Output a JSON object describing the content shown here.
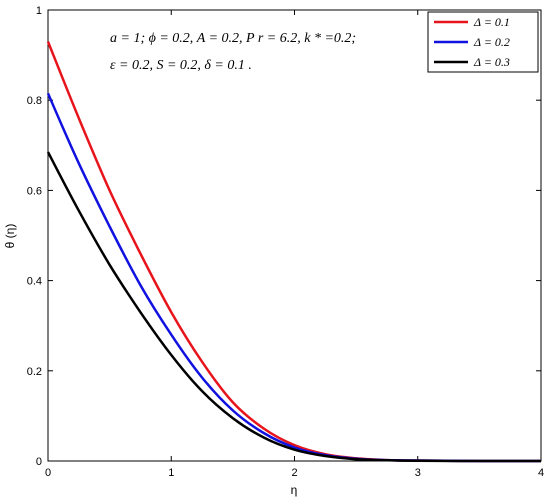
{
  "chart_data": {
    "type": "line",
    "title": "",
    "xlabel": "η",
    "ylabel": "θ (η)",
    "xlim": [
      0,
      4
    ],
    "ylim": [
      0,
      1
    ],
    "xticks": [
      "0",
      "1",
      "2",
      "3",
      "4"
    ],
    "yticks": [
      "0",
      "0.2",
      "0.4",
      "0.6",
      "0.8",
      "1"
    ],
    "grid": false,
    "legend_position": "top-right",
    "annotation_lines": [
      "a = 1; ϕ = 0.2, A = 0.2, P r = 6.2, k * =0.2;",
      "ε = 0.2, S = 0.2, δ = 0.1 ."
    ],
    "x": [
      0,
      0.25,
      0.5,
      0.75,
      1.0,
      1.25,
      1.5,
      1.75,
      2.0,
      2.25,
      2.5,
      2.75,
      3.0,
      3.5,
      4.0
    ],
    "series": [
      {
        "name": "Δ = 0.1",
        "color": "#e8141c",
        "values": [
          0.93,
          0.76,
          0.6,
          0.46,
          0.33,
          0.22,
          0.13,
          0.072,
          0.035,
          0.015,
          0.006,
          0.002,
          0.001,
          0.0,
          0.0
        ]
      },
      {
        "name": "Δ = 0.2",
        "color": "#1111e0",
        "values": [
          0.815,
          0.66,
          0.52,
          0.39,
          0.28,
          0.185,
          0.112,
          0.062,
          0.03,
          0.013,
          0.005,
          0.002,
          0.001,
          0.0,
          0.0
        ]
      },
      {
        "name": "Δ = 0.3",
        "color": "#000000",
        "values": [
          0.685,
          0.555,
          0.435,
          0.33,
          0.235,
          0.155,
          0.095,
          0.052,
          0.025,
          0.011,
          0.004,
          0.0015,
          0.0005,
          0.0,
          0.0
        ]
      }
    ]
  }
}
